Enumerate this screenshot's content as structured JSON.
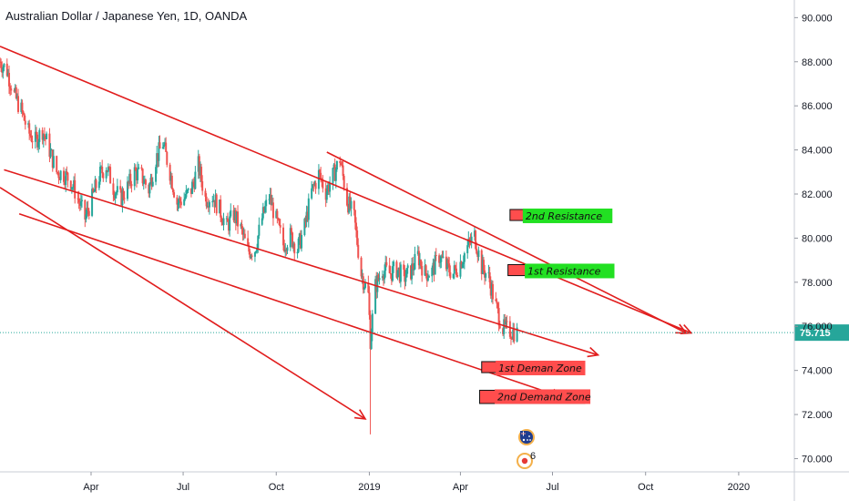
{
  "chart_data": {
    "type": "candlestick",
    "title": "Australian Dollar / Japanese Yen, 1D, OANDA",
    "ylim": [
      69.4,
      90.8
    ],
    "y_ticks": [
      "90.000",
      "88.000",
      "86.000",
      "84.000",
      "82.000",
      "80.000",
      "78.000",
      "76.000",
      "74.000",
      "72.000",
      "70.000"
    ],
    "x_ticks": [
      "Apr",
      "Jul",
      "Oct",
      "2019",
      "Apr",
      "Jul",
      "Oct",
      "2020"
    ],
    "last_price": "75.715",
    "last_price_value": 75.715,
    "colors": {
      "up": "#26a69a",
      "down": "#ef5350",
      "lines": "#e11d1d",
      "price": "#26a69a",
      "support_fill": "#ff4d4d",
      "resistance_label": "#22e022"
    },
    "trend_lines": [
      {
        "from": [
          "2018-01-01",
          88.7
        ],
        "to": [
          "2019-11-15",
          75.7
        ]
      },
      {
        "from": [
          "2018-01-05",
          83.1
        ],
        "to": [
          "2019-08-15",
          74.7
        ]
      },
      {
        "from": [
          "2018-01-01",
          82.3
        ],
        "to": [
          "2018-12-28",
          71.8
        ]
      },
      {
        "from": [
          "2018-11-20",
          83.9
        ],
        "to": [
          "2019-11-10",
          75.7
        ]
      },
      {
        "from": [
          "2018-01-20",
          81.1
        ],
        "to": [
          "2019-07-10",
          72.8
        ]
      }
    ],
    "zones": [
      {
        "label": "2nd Resistance",
        "kind": "resistance",
        "x_start": "2019-05-20",
        "x_end": "2019-08-22",
        "y_low": 80.8,
        "y_high": 81.3
      },
      {
        "label": "1st Resistance",
        "kind": "resistance",
        "x_start": "2019-05-18",
        "x_end": "2019-08-24",
        "y_low": 78.3,
        "y_high": 78.8
      },
      {
        "label": "1st Deman Zone",
        "kind": "demand",
        "x_start": "2019-04-22",
        "x_end": "2019-07-28",
        "y_low": 73.9,
        "y_high": 74.4
      },
      {
        "label": "2nd Demand Zone",
        "kind": "demand",
        "x_start": "2019-04-20",
        "x_end": "2019-08-02",
        "y_low": 72.5,
        "y_high": 73.1
      }
    ],
    "series_close": [
      [
        "2018-01-01",
        88.0
      ],
      [
        "2018-01-08",
        87.6
      ],
      [
        "2018-01-15",
        86.5
      ],
      [
        "2018-01-22",
        85.8
      ],
      [
        "2018-01-29",
        84.8
      ],
      [
        "2018-02-05",
        84.4
      ],
      [
        "2018-02-12",
        84.9
      ],
      [
        "2018-02-19",
        84.0
      ],
      [
        "2018-02-26",
        83.0
      ],
      [
        "2018-03-05",
        82.9
      ],
      [
        "2018-03-12",
        82.6
      ],
      [
        "2018-03-19",
        81.8
      ],
      [
        "2018-03-26",
        80.9
      ],
      [
        "2018-04-02",
        81.8
      ],
      [
        "2018-04-09",
        82.8
      ],
      [
        "2018-04-16",
        83.3
      ],
      [
        "2018-04-23",
        82.3
      ],
      [
        "2018-04-30",
        81.8
      ],
      [
        "2018-05-07",
        82.3
      ],
      [
        "2018-05-14",
        83.0
      ],
      [
        "2018-05-21",
        82.8
      ],
      [
        "2018-05-28",
        82.2
      ],
      [
        "2018-06-04",
        83.6
      ],
      [
        "2018-06-11",
        84.3
      ],
      [
        "2018-06-18",
        83.0
      ],
      [
        "2018-06-25",
        81.6
      ],
      [
        "2018-07-02",
        81.8
      ],
      [
        "2018-07-09",
        82.2
      ],
      [
        "2018-07-16",
        83.3
      ],
      [
        "2018-07-23",
        81.8
      ],
      [
        "2018-07-30",
        81.9
      ],
      [
        "2018-08-06",
        81.3
      ],
      [
        "2018-08-13",
        80.5
      ],
      [
        "2018-08-20",
        81.1
      ],
      [
        "2018-08-27",
        80.4
      ],
      [
        "2018-09-03",
        79.4
      ],
      [
        "2018-09-10",
        79.5
      ],
      [
        "2018-09-17",
        80.9
      ],
      [
        "2018-09-24",
        81.9
      ],
      [
        "2018-10-01",
        80.8
      ],
      [
        "2018-10-08",
        79.7
      ],
      [
        "2018-10-15",
        80.1
      ],
      [
        "2018-10-22",
        79.5
      ],
      [
        "2018-10-29",
        80.5
      ],
      [
        "2018-11-05",
        82.1
      ],
      [
        "2018-11-12",
        82.9
      ],
      [
        "2018-11-19",
        82.1
      ],
      [
        "2018-11-26",
        82.8
      ],
      [
        "2018-12-03",
        83.6
      ],
      [
        "2018-12-10",
        81.7
      ],
      [
        "2018-12-17",
        80.9
      ],
      [
        "2018-12-24",
        78.4
      ],
      [
        "2018-12-31",
        77.4
      ],
      [
        "2019-01-02",
        75.4
      ],
      [
        "2019-01-07",
        77.8
      ],
      [
        "2019-01-14",
        78.6
      ],
      [
        "2019-01-21",
        78.4
      ],
      [
        "2019-01-28",
        78.6
      ],
      [
        "2019-02-04",
        78.2
      ],
      [
        "2019-02-11",
        78.5
      ],
      [
        "2019-02-18",
        79.2
      ],
      [
        "2019-02-25",
        78.4
      ],
      [
        "2019-03-04",
        78.5
      ],
      [
        "2019-03-11",
        79.2
      ],
      [
        "2019-03-18",
        78.7
      ],
      [
        "2019-03-25",
        78.4
      ],
      [
        "2019-04-01",
        78.9
      ],
      [
        "2019-04-08",
        79.6
      ],
      [
        "2019-04-15",
        80.1
      ],
      [
        "2019-04-22",
        78.7
      ],
      [
        "2019-04-29",
        78.2
      ],
      [
        "2019-05-06",
        76.9
      ],
      [
        "2019-05-13",
        75.9
      ],
      [
        "2019-05-20",
        75.8
      ],
      [
        "2019-05-27",
        75.7
      ]
    ]
  },
  "chart_meta": {
    "x_range": [
      "2018-01-01",
      "2020-02-25"
    ],
    "x_tick_dates": [
      "2018-04-01",
      "2018-07-01",
      "2018-10-01",
      "2019-01-01",
      "2019-04-01",
      "2019-07-01",
      "2019-10-01",
      "2020-01-01"
    ],
    "low_spike": {
      "date": "2019-01-02",
      "low": 71.1
    },
    "flag_icon": "australia-flag-icon",
    "event_icon": "japan-event-icon",
    "event_count": "6"
  }
}
